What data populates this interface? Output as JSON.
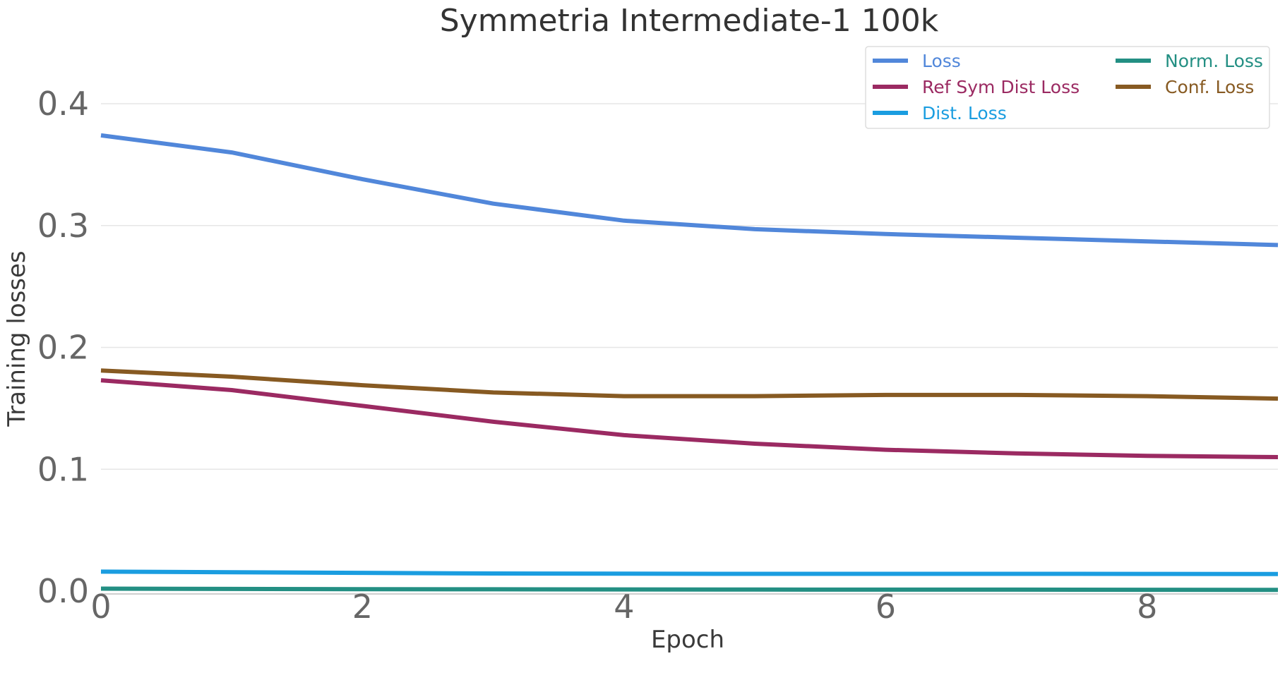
{
  "chart_data": {
    "type": "line",
    "title": "Symmetria Intermediate-1 100k",
    "xlabel": "Epoch",
    "ylabel": "Training losses",
    "x": [
      0,
      1,
      2,
      3,
      4,
      5,
      6,
      7,
      8,
      9
    ],
    "xlim": [
      0,
      9
    ],
    "ylim": [
      0,
      0.4
    ],
    "xticks": [
      0,
      2,
      4,
      6,
      8
    ],
    "yticks": [
      0.0,
      0.1,
      0.2,
      0.3,
      0.4
    ],
    "xtick_labels": [
      "0",
      "2",
      "4",
      "6",
      "8"
    ],
    "ytick_labels": [
      "0.0",
      "0.1",
      "0.2",
      "0.3",
      "0.4"
    ],
    "grid": true,
    "legend_position": "top-right",
    "legend_columns": 2,
    "series": [
      {
        "name": "Loss",
        "color": "#5187da",
        "values": [
          0.374,
          0.36,
          0.338,
          0.318,
          0.304,
          0.297,
          0.293,
          0.29,
          0.287,
          0.284
        ]
      },
      {
        "name": "Ref Sym Dist Loss",
        "color": "#9b2a62",
        "values": [
          0.173,
          0.165,
          0.152,
          0.139,
          0.128,
          0.121,
          0.116,
          0.113,
          0.111,
          0.11
        ]
      },
      {
        "name": "Dist. Loss",
        "color": "#1a9de0",
        "values": [
          0.016,
          0.0155,
          0.015,
          0.0145,
          0.0143,
          0.0142,
          0.0142,
          0.0142,
          0.0141,
          0.014
        ]
      },
      {
        "name": "Norm. Loss",
        "color": "#238f83",
        "values": [
          0.002,
          0.0018,
          0.0016,
          0.0015,
          0.0014,
          0.0013,
          0.0012,
          0.0012,
          0.0011,
          0.001
        ]
      },
      {
        "name": "Conf. Loss",
        "color": "#875a22",
        "values": [
          0.181,
          0.176,
          0.169,
          0.163,
          0.16,
          0.16,
          0.161,
          0.161,
          0.16,
          0.158
        ]
      }
    ]
  }
}
